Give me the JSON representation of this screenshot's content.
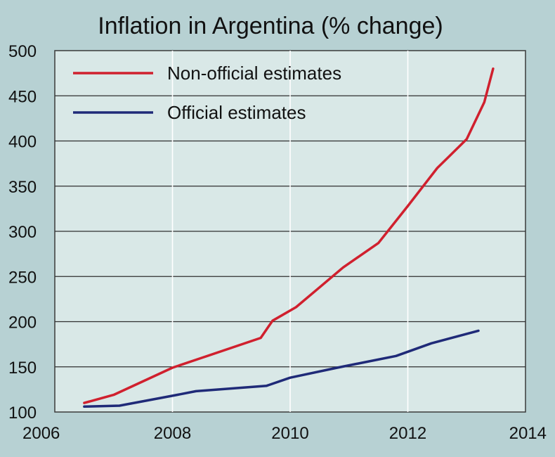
{
  "chart_data": {
    "type": "line",
    "title": "Inflation in Argentina (% change)",
    "xlabel": "",
    "ylabel": "",
    "xlim": [
      2006,
      2014
    ],
    "ylim": [
      100,
      500
    ],
    "x_ticks": [
      "2006",
      "2008",
      "2010",
      "2012",
      "2014"
    ],
    "y_ticks": [
      "100",
      "150",
      "200",
      "250",
      "300",
      "350",
      "400",
      "450",
      "500"
    ],
    "grid": true,
    "legend_position": "top-left",
    "series": [
      {
        "name": "Non-official estimates",
        "color": "#d0202e",
        "points": [
          [
            2006.5,
            110
          ],
          [
            2007.0,
            119
          ],
          [
            2008.0,
            149
          ],
          [
            2008.5,
            160
          ],
          [
            2009.5,
            182
          ],
          [
            2009.7,
            201
          ],
          [
            2010.1,
            216
          ],
          [
            2010.5,
            238
          ],
          [
            2010.9,
            260
          ],
          [
            2011.5,
            287
          ],
          [
            2012.0,
            328
          ],
          [
            2012.5,
            370
          ],
          [
            2013.0,
            402
          ],
          [
            2013.3,
            443
          ],
          [
            2013.45,
            480
          ]
        ]
      },
      {
        "name": "Official estimates",
        "color": "#1f2a78",
        "points": [
          [
            2006.5,
            106
          ],
          [
            2007.1,
            107
          ],
          [
            2008.0,
            118
          ],
          [
            2008.4,
            123
          ],
          [
            2009.6,
            129
          ],
          [
            2010.0,
            138
          ],
          [
            2010.8,
            149
          ],
          [
            2011.8,
            162
          ],
          [
            2012.4,
            176
          ],
          [
            2013.2,
            190
          ]
        ]
      }
    ]
  }
}
